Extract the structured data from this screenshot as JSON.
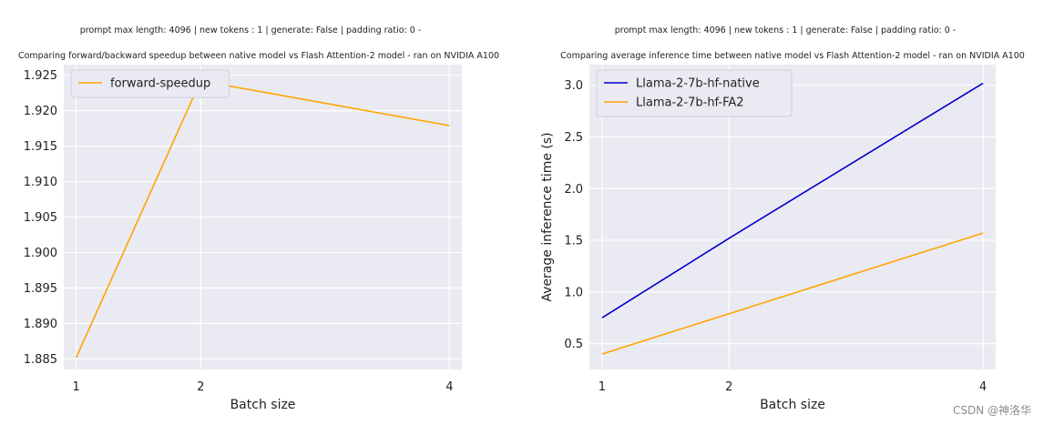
{
  "watermark": "CSDN @神洛华",
  "chart_data": [
    {
      "type": "line",
      "suptitle": "prompt max length: 4096 | new tokens : 1 | generate: False | padding ratio: 0 -",
      "title": "Comparing forward/backward speedup between native model vs Flash Attention-2 model - ran on NVIDIA A100",
      "xlabel": "Batch size",
      "ylabel": "",
      "x": [
        1,
        2,
        4
      ],
      "x_ticks": [
        "1",
        "2",
        "4"
      ],
      "xlim": [
        0.9,
        4.1
      ],
      "ylim": [
        1.8835,
        1.9265
      ],
      "y_ticks": [
        "1.885",
        "1.890",
        "1.895",
        "1.900",
        "1.905",
        "1.910",
        "1.915",
        "1.920",
        "1.925"
      ],
      "y_tick_values": [
        1.885,
        1.89,
        1.895,
        1.9,
        1.905,
        1.91,
        1.915,
        1.92,
        1.925
      ],
      "grid": true,
      "legend_position": "top-left",
      "series": [
        {
          "name": "forward-speedup",
          "color": "#FFA500",
          "values": [
            1.8852,
            1.9242,
            1.9179
          ]
        }
      ]
    },
    {
      "type": "line",
      "suptitle": "prompt max length: 4096 | new tokens : 1 | generate: False | padding ratio: 0 -",
      "title": "Comparing average inference time between native model vs Flash Attention-2 model - ran on NVIDIA A100",
      "xlabel": "Batch size",
      "ylabel": "Average inference time (s)",
      "x": [
        1,
        2,
        4
      ],
      "x_ticks": [
        "1",
        "2",
        "4"
      ],
      "xlim": [
        0.9,
        4.1
      ],
      "ylim": [
        0.25,
        3.2
      ],
      "y_ticks": [
        "0.5",
        "1.0",
        "1.5",
        "2.0",
        "2.5",
        "3.0"
      ],
      "y_tick_values": [
        0.5,
        1.0,
        1.5,
        2.0,
        2.5,
        3.0
      ],
      "grid": true,
      "legend_position": "top-left",
      "series": [
        {
          "name": "Llama-2-7b-hf-native",
          "color": "#0000CD",
          "values": [
            0.75,
            1.52,
            3.02
          ]
        },
        {
          "name": "Llama-2-7b-hf-FA2",
          "color": "#FFA500",
          "values": [
            0.4,
            0.79,
            1.57
          ]
        }
      ]
    }
  ]
}
